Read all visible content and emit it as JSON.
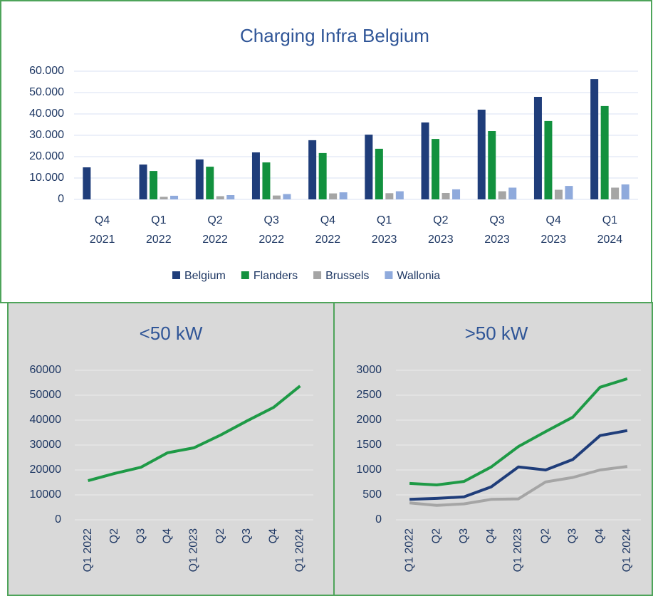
{
  "chart_data": [
    {
      "type": "bar",
      "title": "Charging Infra Belgium",
      "categories": [
        "Q4 2021",
        "Q1 2022",
        "Q2 2022",
        "Q3 2022",
        "Q4 2022",
        "Q1 2023",
        "Q2 2023",
        "Q3 2023",
        "Q4 2023",
        "Q1 2024"
      ],
      "series": [
        {
          "name": "Belgium",
          "color": "#1f3d7a",
          "values": [
            15000,
            16300,
            18700,
            22000,
            27700,
            30300,
            36000,
            42000,
            48000,
            56300
          ]
        },
        {
          "name": "Flanders",
          "color": "#12913e",
          "values": [
            null,
            13300,
            15300,
            17300,
            21700,
            23700,
            28300,
            32000,
            36700,
            43700
          ]
        },
        {
          "name": "Brussels",
          "color": "#a5a5a5",
          "values": [
            null,
            1200,
            1500,
            1800,
            2800,
            2900,
            3000,
            3800,
            4500,
            5500
          ]
        },
        {
          "name": "Wallonia",
          "color": "#8faadc",
          "values": [
            null,
            1700,
            2000,
            2500,
            3300,
            3800,
            4700,
            5500,
            6300,
            7000
          ]
        }
      ],
      "ylim": [
        0,
        60000
      ],
      "yticks": [
        0,
        {
          "value": 10000,
          "label": "10.000"
        },
        {
          "value": 20000,
          "label": "20.000"
        },
        {
          "value": 30000,
          "label": "30.000"
        },
        {
          "value": 40000,
          "label": "40.000"
        },
        {
          "value": 50000,
          "label": "50.000"
        },
        {
          "value": 60000,
          "label": "60.000"
        }
      ],
      "grid": true,
      "legend": "bottom"
    },
    {
      "type": "line",
      "title": "<50 kW",
      "categories": [
        "Q1 2022",
        "Q2",
        "Q3",
        "Q4",
        "Q1 2023",
        "Q2",
        "Q3",
        "Q4",
        "Q1 2024"
      ],
      "series": [
        {
          "color": "#1e9a46",
          "values": [
            15700,
            18600,
            21100,
            26900,
            28900,
            34000,
            39700,
            45100,
            53700
          ]
        }
      ],
      "ylim": [
        0,
        60000
      ],
      "yticks": [
        0,
        10000,
        20000,
        30000,
        40000,
        50000,
        60000
      ],
      "grid": true
    },
    {
      "type": "line",
      "title": ">50 kW",
      "categories": [
        "Q1 2022",
        "Q2",
        "Q3",
        "Q4",
        "Q1 2023",
        "Q2",
        "Q3",
        "Q4",
        "Q1 2024"
      ],
      "series": [
        {
          "color": "#1e9a46",
          "values": [
            730,
            700,
            770,
            1060,
            1470,
            1770,
            2060,
            2660,
            2830
          ]
        },
        {
          "color": "#1f3d7a",
          "values": [
            410,
            430,
            460,
            660,
            1060,
            1000,
            1210,
            1690,
            1790
          ]
        },
        {
          "color": "#a5a5a5",
          "values": [
            340,
            290,
            320,
            410,
            420,
            760,
            850,
            1000,
            1070
          ]
        }
      ],
      "ylim": [
        0,
        3000
      ],
      "yticks": [
        0,
        500,
        1000,
        1500,
        2000,
        2500,
        3000
      ],
      "grid": true
    }
  ]
}
